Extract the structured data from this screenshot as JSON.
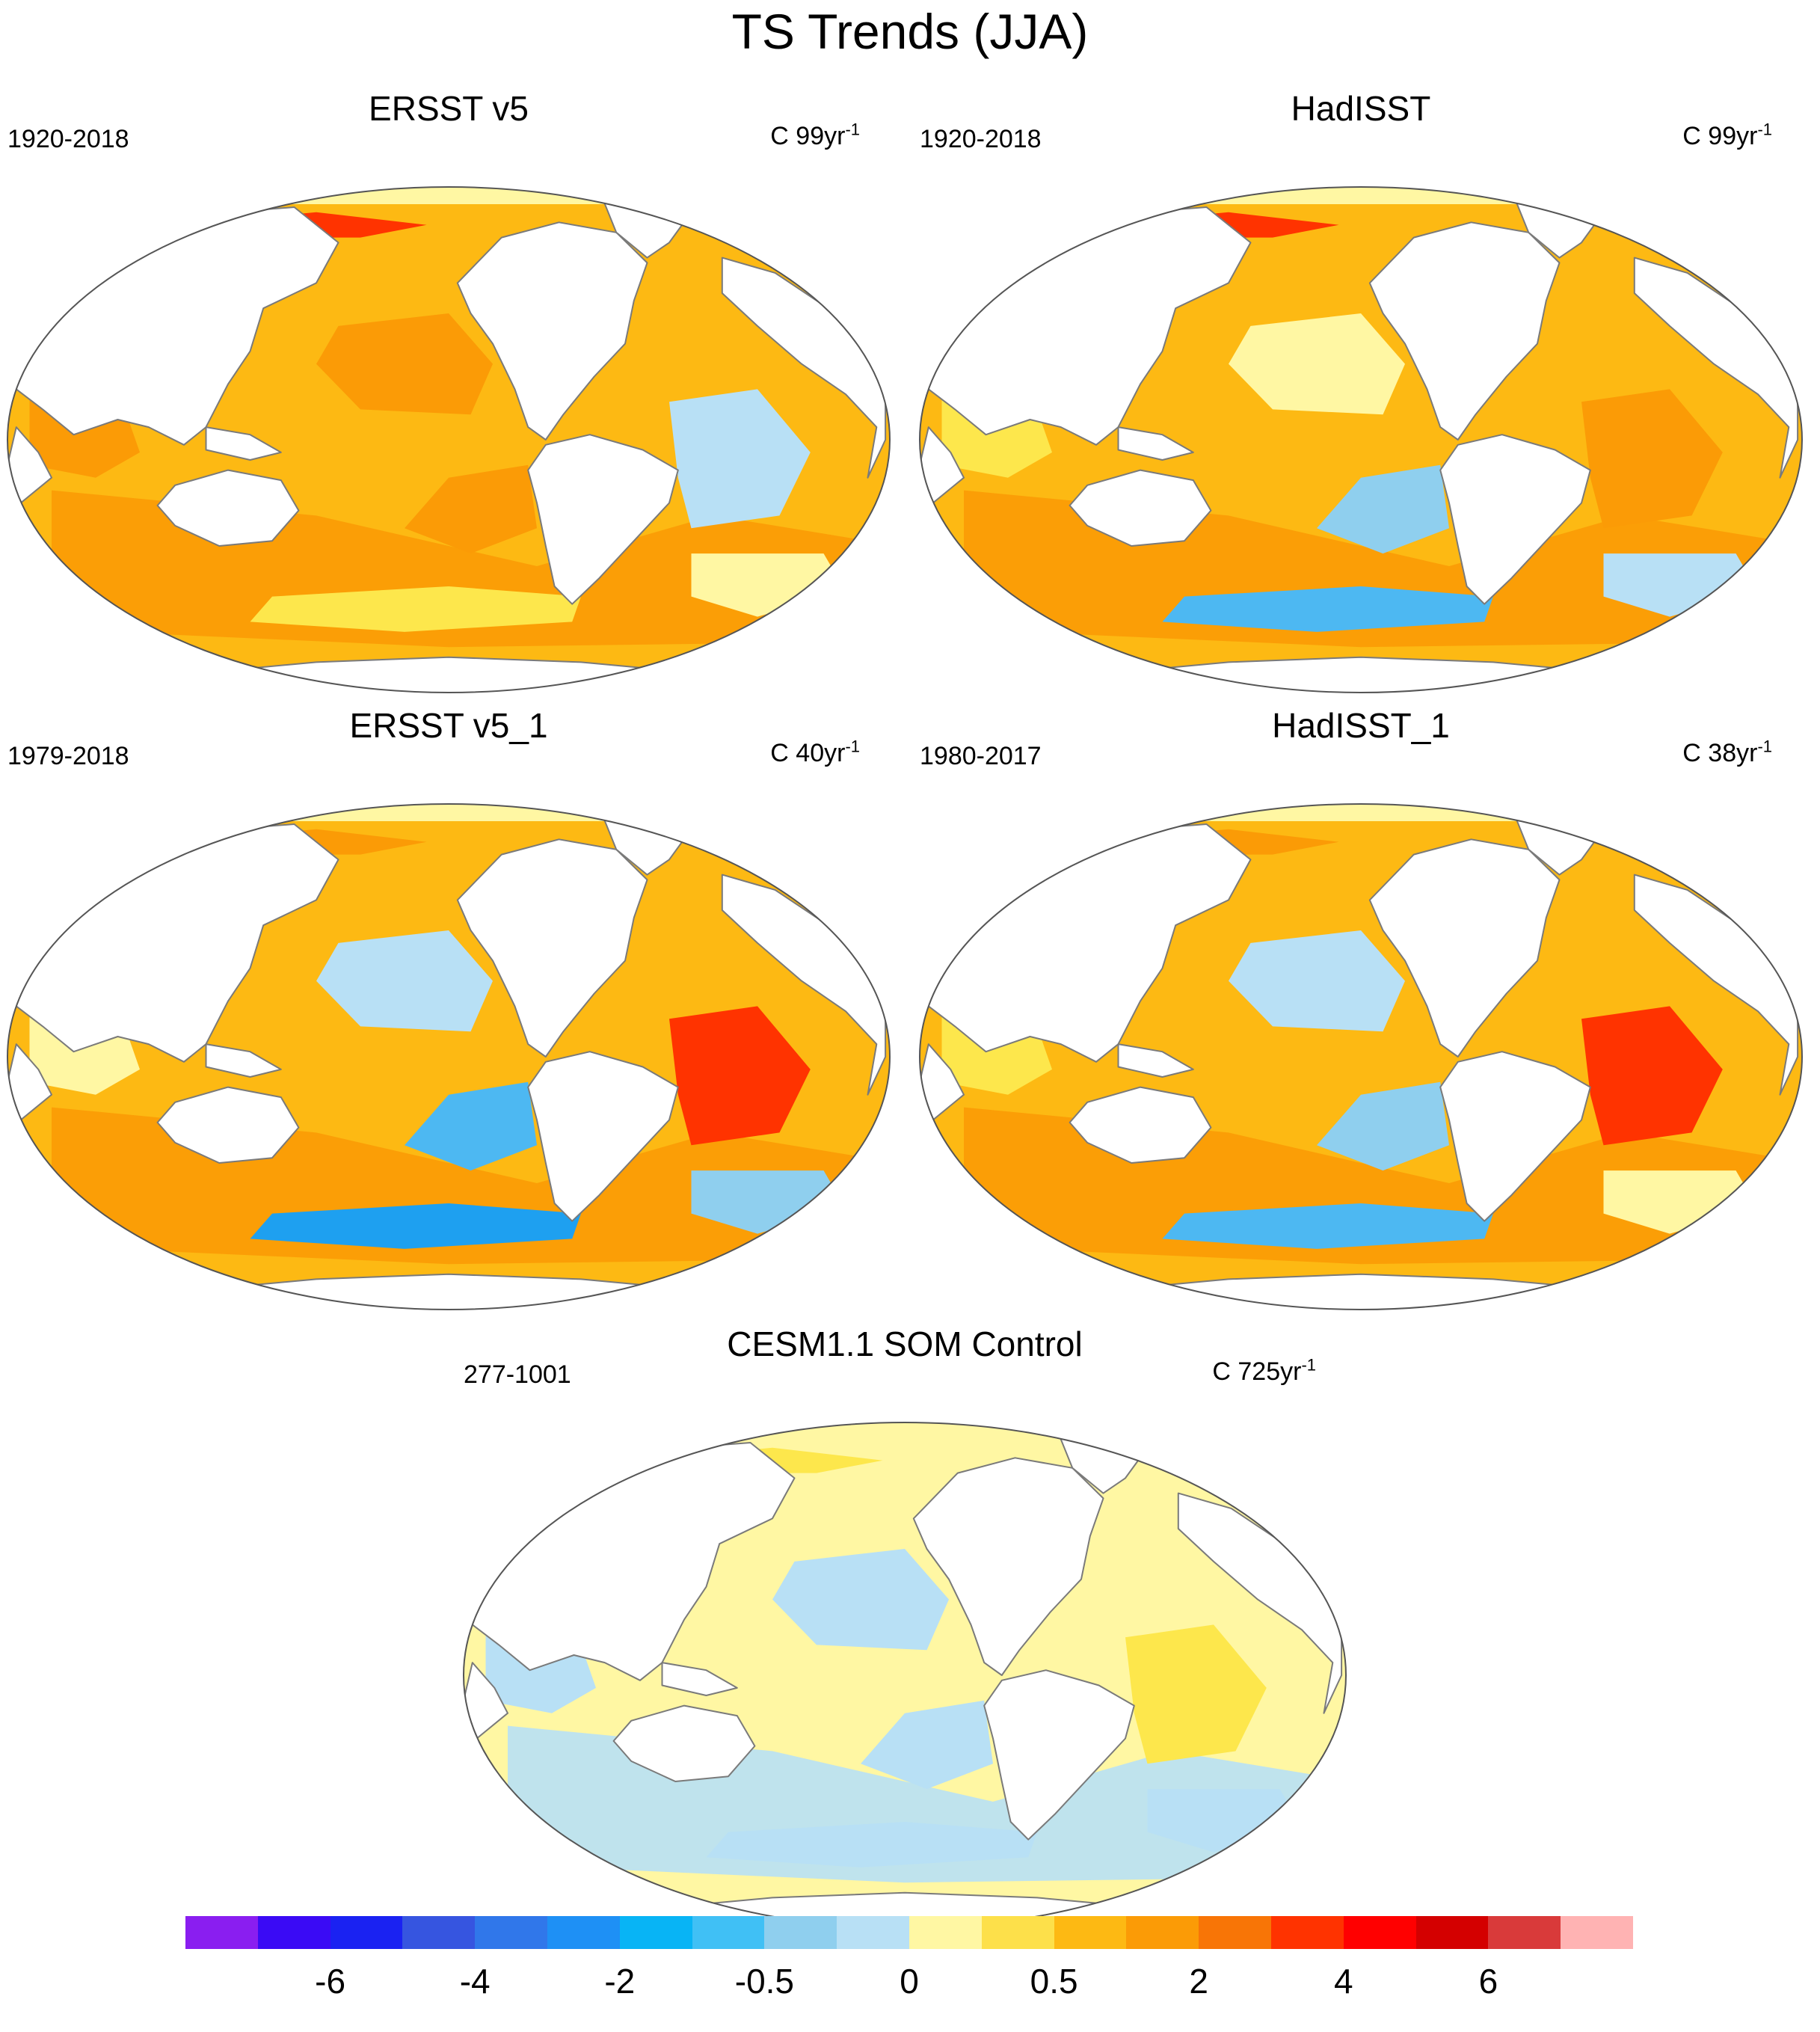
{
  "figure": {
    "title": "TS Trends (JJA)"
  },
  "panels": [
    {
      "id": "ersst_v5",
      "title": "ERSST v5",
      "period": "1920-2018",
      "units_prefix": "C 99yr",
      "units_exp": "-1",
      "ocean_color": "#fdb913",
      "accent_color": "#fb9b06",
      "patches": [
        {
          "color": "#fb9b06"
        },
        {
          "color": "#fb9b06"
        },
        {
          "color": "#fb9b06"
        },
        {
          "color": "#fde74c"
        },
        {
          "color": "#ff3300"
        },
        {
          "color": "#b8e0f5"
        },
        {
          "color": "#fff7a3"
        }
      ]
    },
    {
      "id": "hadisst",
      "title": "HadISST",
      "period": "1920-2018",
      "units_prefix": "C 99yr",
      "units_exp": "-1",
      "ocean_color": "#fdb913",
      "accent_color": "#fb9b06",
      "patches": [
        {
          "color": "#fde74c"
        },
        {
          "color": "#fff7a3"
        },
        {
          "color": "#8fcfee"
        },
        {
          "color": "#4db8f2"
        },
        {
          "color": "#ff3300"
        },
        {
          "color": "#fb9b06"
        },
        {
          "color": "#b8e0f5"
        }
      ]
    },
    {
      "id": "ersst_v5_1",
      "title": "ERSST v5_1",
      "period": "1979-2018",
      "units_prefix": "C 40yr",
      "units_exp": "-1",
      "ocean_color": "#fdb913",
      "accent_color": "#fb9b06",
      "patches": [
        {
          "color": "#fff7a3"
        },
        {
          "color": "#b8e0f5"
        },
        {
          "color": "#4db8f2"
        },
        {
          "color": "#1ea0f0"
        },
        {
          "color": "#fb9b06"
        },
        {
          "color": "#ff3300"
        },
        {
          "color": "#8fcfee"
        }
      ]
    },
    {
      "id": "hadisst_1",
      "title": "HadISST_1",
      "period": "1980-2017",
      "units_prefix": "C 38yr",
      "units_exp": "-1",
      "ocean_color": "#fdb913",
      "accent_color": "#fb9b06",
      "patches": [
        {
          "color": "#fde74c"
        },
        {
          "color": "#b8e0f5"
        },
        {
          "color": "#8fcfee"
        },
        {
          "color": "#4db8f2"
        },
        {
          "color": "#fb9b06"
        },
        {
          "color": "#ff3300"
        },
        {
          "color": "#fff7a3"
        }
      ]
    },
    {
      "id": "cesm_som",
      "title": "CESM1.1 SOM Control",
      "period": "277-1001",
      "units_prefix": "C 725yr",
      "units_exp": "-1",
      "ocean_color": "#fff7a3",
      "accent_color": "#b8e0f5",
      "patches": [
        {
          "color": "#b8e0f5"
        },
        {
          "color": "#b8e0f5"
        },
        {
          "color": "#b8e0f5"
        },
        {
          "color": "#b8e0f5"
        },
        {
          "color": "#fde74c"
        },
        {
          "color": "#fde74c"
        },
        {
          "color": "#b8e0f5"
        }
      ]
    }
  ],
  "colorbar": {
    "colors": [
      "#8a1ef0",
      "#3a0af5",
      "#1a22f2",
      "#3655e0",
      "#3077ea",
      "#1e90f5",
      "#08b4f5",
      "#40c0f5",
      "#8fcfee",
      "#b8e0f5",
      "#fff7a3",
      "#fde04a",
      "#fdb913",
      "#fb9b06",
      "#f87506",
      "#ff3300",
      "#ff0000",
      "#d40000",
      "#d93a3a",
      "#ffb3b3"
    ],
    "labels": [
      "-6",
      "-4",
      "-2",
      "-0.5",
      "0",
      "0.5",
      "2",
      "4",
      "6"
    ],
    "label_boundaries": [
      2,
      4,
      6,
      8,
      10,
      12,
      14,
      16,
      18
    ]
  },
  "land_color": "#ffffff",
  "coast_color": "#7a7a7a"
}
